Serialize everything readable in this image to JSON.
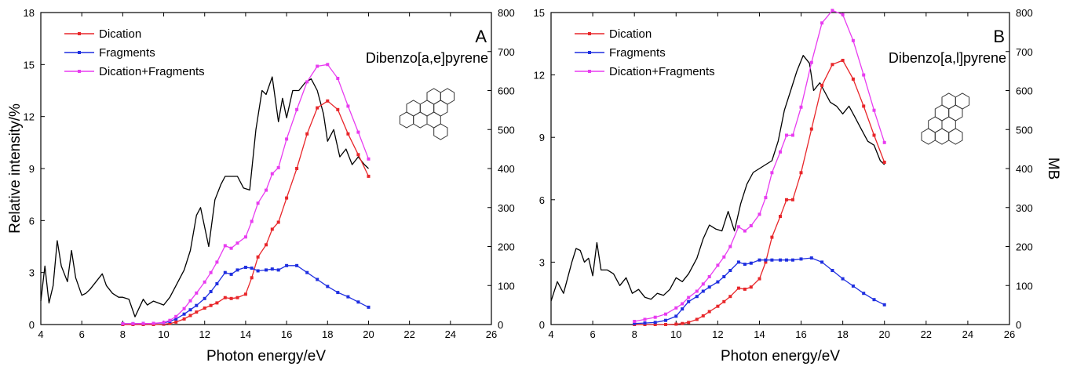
{
  "chart_data": [
    {
      "type": "line",
      "panel_label": "A",
      "annotation": "Dibenzo[a,e]pyrene",
      "xlabel": "Photon energy/eV",
      "ylabel": "Relative intensity/%",
      "y2label": "",
      "xlim": [
        4,
        26
      ],
      "ylim": [
        0,
        18
      ],
      "y2lim": [
        0,
        800
      ],
      "xticks": [
        "4",
        "6",
        "8",
        "10",
        "12",
        "14",
        "16",
        "18",
        "20",
        "22",
        "24",
        "26"
      ],
      "yticks": [
        "0",
        "3",
        "6",
        "9",
        "12",
        "15",
        "18"
      ],
      "y2ticks": [
        "0",
        "100",
        "200",
        "300",
        "400",
        "500",
        "600",
        "700",
        "800"
      ],
      "legend": [
        "Dication",
        "Fragments",
        "Dication+Fragments"
      ],
      "legend_position": "top-left",
      "grid": false,
      "colors": {
        "dication": "#e8262a",
        "fragments": "#1f2fe0",
        "sum": "#e83cf0",
        "mb": "#000000"
      },
      "x": [
        8,
        8.5,
        9,
        9.5,
        10,
        10.3,
        10.6,
        11,
        11.3,
        11.6,
        12,
        12.3,
        12.6,
        13,
        13.3,
        13.6,
        14,
        14.3,
        14.6,
        15,
        15.3,
        15.6,
        16,
        16.5,
        17,
        17.5,
        18,
        18.5,
        19,
        19.5,
        20
      ],
      "series": [
        {
          "name": "Dication",
          "values": [
            0,
            0,
            0,
            0,
            0.02,
            0.06,
            0.14,
            0.32,
            0.52,
            0.72,
            0.95,
            1.1,
            1.25,
            1.55,
            1.5,
            1.55,
            1.75,
            2.7,
            3.9,
            4.6,
            5.5,
            5.9,
            7.3,
            9.0,
            11.0,
            12.5,
            12.9,
            12.4,
            11.0,
            9.8,
            8.55
          ]
        },
        {
          "name": "Fragments",
          "values": [
            0.05,
            0.05,
            0.06,
            0.07,
            0.1,
            0.18,
            0.32,
            0.6,
            0.85,
            1.1,
            1.5,
            1.9,
            2.35,
            3.0,
            2.9,
            3.15,
            3.3,
            3.25,
            3.1,
            3.15,
            3.2,
            3.15,
            3.4,
            3.4,
            3.0,
            2.6,
            2.2,
            1.85,
            1.6,
            1.3,
            1.0
          ]
        },
        {
          "name": "Dication+Fragments",
          "values": [
            0.05,
            0.05,
            0.06,
            0.07,
            0.12,
            0.24,
            0.46,
            0.92,
            1.37,
            1.82,
            2.45,
            3.0,
            3.6,
            4.55,
            4.4,
            4.7,
            5.05,
            5.95,
            7.0,
            7.75,
            8.7,
            9.05,
            10.7,
            12.4,
            14.0,
            14.9,
            15.0,
            14.2,
            12.6,
            11.1,
            9.55
          ]
        },
        {
          "name": "",
          "axis": "right",
          "x": [
            4,
            4.2,
            4.4,
            4.6,
            4.8,
            5,
            5.3,
            5.5,
            5.7,
            6,
            6.2,
            6.4,
            6.7,
            7,
            7.2,
            7.5,
            7.8,
            8,
            8.3,
            8.6,
            9,
            9.2,
            9.5,
            10,
            10.3,
            10.6,
            11,
            11.3,
            11.6,
            11.8,
            12,
            12.2,
            12.5,
            12.8,
            13,
            13.3,
            13.6,
            13.9,
            14.2,
            14.5,
            14.8,
            15,
            15.3,
            15.6,
            15.8,
            16,
            16.3,
            16.6,
            16.9,
            17.2,
            17.5,
            17.8,
            18,
            18.3,
            18.6,
            18.9,
            19.2,
            19.5,
            19.8,
            20
          ],
          "values": [
            60,
            150,
            55,
            100,
            215,
            150,
            110,
            190,
            120,
            75,
            80,
            90,
            110,
            130,
            100,
            80,
            70,
            70,
            65,
            20,
            65,
            50,
            60,
            50,
            70,
            100,
            140,
            190,
            280,
            300,
            250,
            200,
            320,
            360,
            380,
            380,
            380,
            350,
            345,
            500,
            600,
            590,
            635,
            520,
            580,
            530,
            600,
            600,
            620,
            630,
            600,
            540,
            470,
            500,
            430,
            450,
            410,
            430,
            410,
            400
          ]
        }
      ]
    },
    {
      "type": "line",
      "panel_label": "B",
      "annotation": "Dibenzo[a,l]pyrene",
      "xlabel": "Photon energy/eV",
      "ylabel": "",
      "y2label": "MB",
      "xlim": [
        4,
        26
      ],
      "ylim": [
        0,
        15
      ],
      "y2lim": [
        0,
        800
      ],
      "xticks": [
        "4",
        "6",
        "8",
        "10",
        "12",
        "14",
        "16",
        "18",
        "20",
        "22",
        "24",
        "26"
      ],
      "yticks": [
        "0",
        "3",
        "6",
        "9",
        "12",
        "15"
      ],
      "y2ticks": [
        "0",
        "100",
        "200",
        "300",
        "400",
        "500",
        "600",
        "700",
        "800"
      ],
      "legend": [
        "Dication",
        "Fragments",
        "Dication+Fragments"
      ],
      "legend_position": "top-left",
      "grid": false,
      "colors": {
        "dication": "#e8262a",
        "fragments": "#1f2fe0",
        "sum": "#e83cf0",
        "mb": "#000000"
      },
      "x": [
        8,
        8.5,
        9,
        9.5,
        10,
        10.3,
        10.6,
        11,
        11.3,
        11.6,
        12,
        12.3,
        12.6,
        13,
        13.3,
        13.6,
        14,
        14.3,
        14.6,
        15,
        15.3,
        15.6,
        16,
        16.5,
        17,
        17.5,
        18,
        18.5,
        19,
        19.5,
        20
      ],
      "series": [
        {
          "name": "Dication",
          "values": [
            0,
            0,
            0,
            0,
            0.02,
            0.05,
            0.1,
            0.25,
            0.42,
            0.62,
            0.88,
            1.1,
            1.35,
            1.75,
            1.7,
            1.8,
            2.2,
            3.0,
            4.2,
            5.2,
            6.0,
            6.0,
            7.3,
            9.4,
            11.5,
            12.5,
            12.7,
            11.8,
            10.5,
            9.1,
            7.8
          ]
        },
        {
          "name": "Fragments",
          "values": [
            0.05,
            0.07,
            0.1,
            0.2,
            0.4,
            0.75,
            1.1,
            1.35,
            1.6,
            1.8,
            2.05,
            2.3,
            2.6,
            3.0,
            2.9,
            2.95,
            3.1,
            3.1,
            3.1,
            3.1,
            3.1,
            3.1,
            3.15,
            3.2,
            3.0,
            2.6,
            2.2,
            1.85,
            1.5,
            1.2,
            0.95
          ]
        },
        {
          "name": "Dication+Fragments",
          "values": [
            0.15,
            0.25,
            0.35,
            0.5,
            0.8,
            1.0,
            1.3,
            1.6,
            1.95,
            2.3,
            2.85,
            3.25,
            3.75,
            4.7,
            4.5,
            4.75,
            5.3,
            6.1,
            7.3,
            8.3,
            9.1,
            9.1,
            10.45,
            12.6,
            14.5,
            15.1,
            14.9,
            13.65,
            12.0,
            10.3,
            8.75
          ]
        },
        {
          "name": "",
          "axis": "right",
          "x": [
            4,
            4.3,
            4.6,
            5,
            5.2,
            5.4,
            5.6,
            5.8,
            6,
            6.2,
            6.4,
            6.7,
            7,
            7.3,
            7.6,
            7.9,
            8.2,
            8.5,
            8.8,
            9.1,
            9.4,
            9.7,
            10,
            10.3,
            10.6,
            11,
            11.3,
            11.6,
            11.9,
            12.2,
            12.5,
            12.8,
            13.1,
            13.4,
            13.7,
            14,
            14.3,
            14.6,
            14.9,
            15.2,
            15.5,
            15.8,
            16.1,
            16.4,
            16.6,
            16.9,
            17.1,
            17.4,
            17.7,
            18,
            18.3,
            18.6,
            18.9,
            19.2,
            19.5,
            19.8,
            20
          ],
          "values": [
            60,
            110,
            80,
            160,
            195,
            190,
            160,
            170,
            125,
            210,
            140,
            140,
            130,
            100,
            120,
            80,
            90,
            70,
            65,
            80,
            75,
            90,
            120,
            110,
            130,
            170,
            220,
            255,
            245,
            240,
            290,
            240,
            310,
            360,
            390,
            400,
            410,
            420,
            470,
            550,
            600,
            650,
            690,
            670,
            600,
            620,
            600,
            570,
            560,
            540,
            560,
            530,
            500,
            470,
            460,
            420,
            410
          ]
        }
      ]
    }
  ]
}
